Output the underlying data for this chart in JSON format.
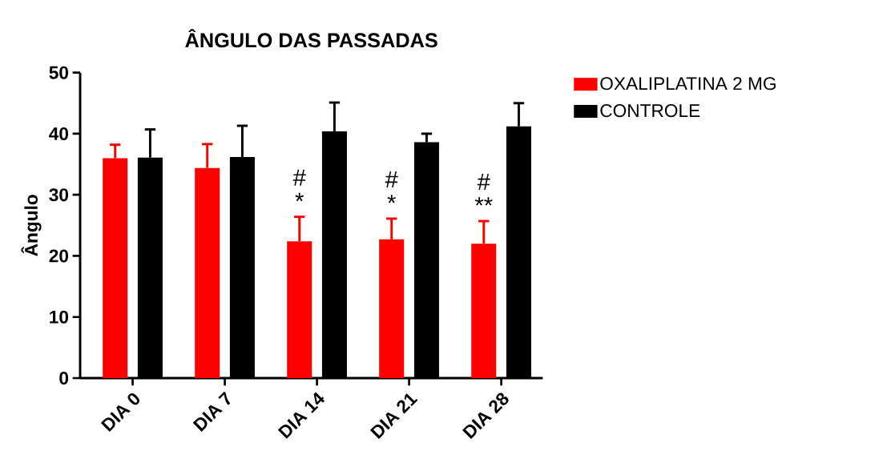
{
  "chart_data": {
    "type": "bar",
    "title": "ÂNGULO DAS PASSADAS",
    "ylabel": "Ângulo",
    "categories": [
      "DIA 0",
      "DIA 7",
      "DIA 14",
      "DIA 21",
      "DIA 28"
    ],
    "series": [
      {
        "name": "OXALIPLATINA 2 MG",
        "color": "#ff0000",
        "values": [
          36.0,
          34.4,
          22.4,
          22.7,
          22.0
        ],
        "errors": [
          [
            36.0,
            38.2
          ],
          [
            34.4,
            38.3
          ],
          [
            22.4,
            26.4
          ],
          [
            22.7,
            26.1
          ],
          [
            22.0,
            25.7
          ]
        ]
      },
      {
        "name": "CONTROLE",
        "color": "#000000",
        "values": [
          36.1,
          36.2,
          40.4,
          38.6,
          41.2
        ],
        "errors": [
          [
            36.1,
            40.7
          ],
          [
            36.2,
            41.3
          ],
          [
            40.4,
            45.1
          ],
          [
            38.6,
            40.0
          ],
          [
            41.2,
            45.0
          ]
        ]
      }
    ],
    "ylim": [
      0,
      50
    ],
    "yticks": [
      0,
      10,
      20,
      30,
      40,
      50
    ],
    "grid": false,
    "legend": "top right",
    "annotations": [
      "*",
      "#",
      "*",
      "#",
      "**",
      "#"
    ]
  }
}
